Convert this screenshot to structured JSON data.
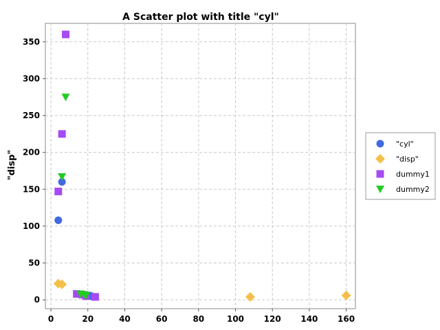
{
  "chart_data": {
    "type": "scatter",
    "title": "A Scatter plot with title \"cyl\"",
    "xlabel": "",
    "ylabel": "\"disp\"",
    "xlim": [
      -3,
      165
    ],
    "ylim": [
      -12,
      375
    ],
    "xticks": [
      0,
      20,
      40,
      60,
      80,
      100,
      120,
      140,
      160
    ],
    "yticks": [
      0,
      50,
      100,
      150,
      200,
      250,
      300,
      350
    ],
    "grid": true,
    "legend_position": "right",
    "series": [
      {
        "name": "\"cyl\"",
        "marker": "circle",
        "color": "#4169e1",
        "points": [
          [
            4,
            108
          ],
          [
            6,
            160
          ],
          [
            20,
            6
          ],
          [
            22,
            5
          ],
          [
            23,
            4
          ],
          [
            21,
            6
          ]
        ]
      },
      {
        "name": "\"disp\"",
        "marker": "diamond",
        "color": "#f5c04a",
        "points": [
          [
            4,
            22
          ],
          [
            6,
            21
          ],
          [
            108,
            4
          ],
          [
            160,
            6
          ]
        ]
      },
      {
        "name": "dummy1",
        "marker": "square",
        "color": "#a64bf4",
        "points": [
          [
            8,
            360
          ],
          [
            6,
            225
          ],
          [
            4,
            147
          ],
          [
            14,
            8
          ],
          [
            17,
            7
          ],
          [
            19,
            5
          ],
          [
            24,
            4
          ]
        ]
      },
      {
        "name": "dummy2",
        "marker": "triangle-down",
        "color": "#22cc22",
        "points": [
          [
            8,
            275
          ],
          [
            6,
            167
          ],
          [
            16,
            8
          ],
          [
            18,
            7
          ],
          [
            19,
            6
          ]
        ]
      }
    ]
  }
}
